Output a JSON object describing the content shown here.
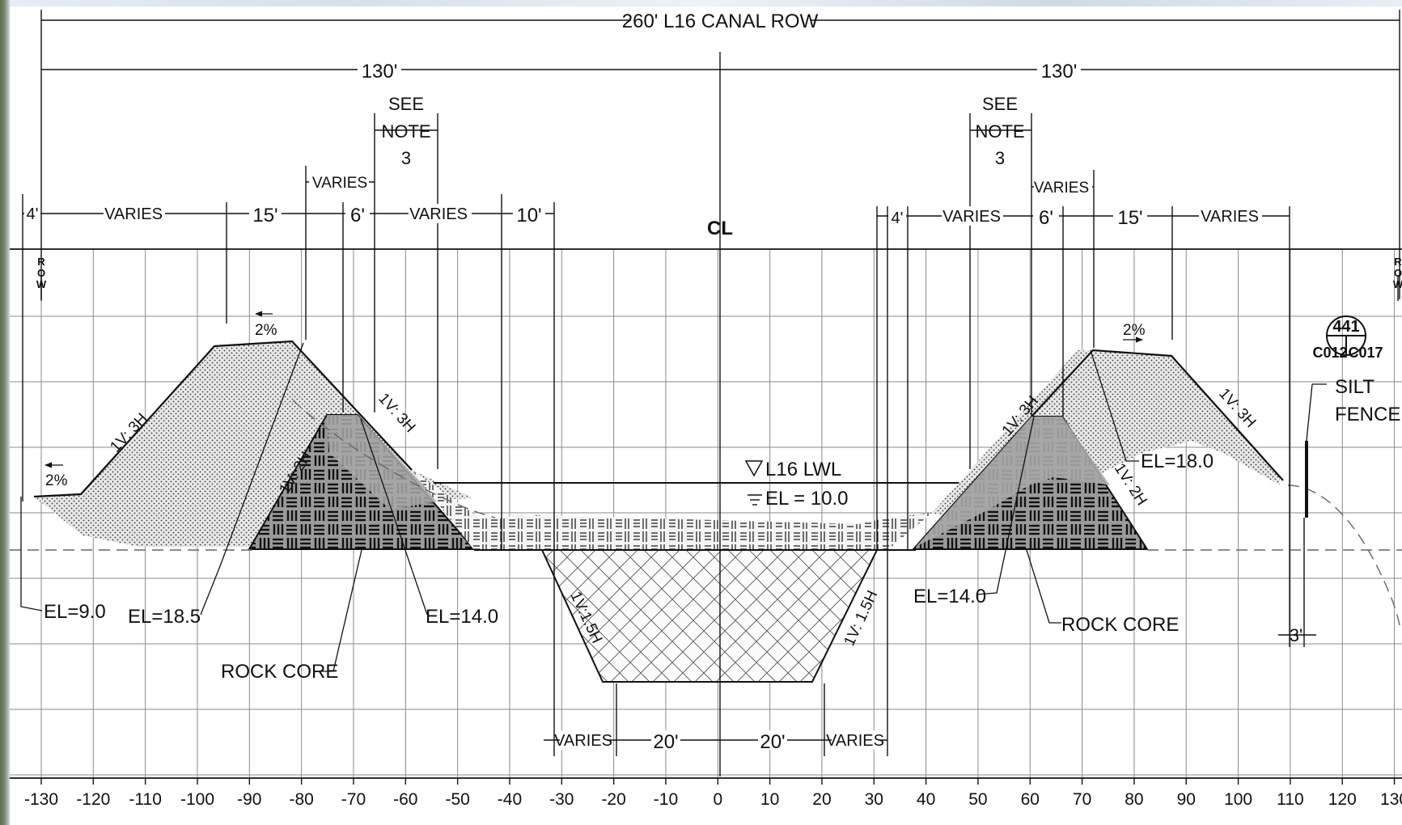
{
  "dimensions": {
    "row_total": "260' L16 CANAL ROW",
    "half_left": "130'",
    "half_right": "130'",
    "see_note_left": [
      "SEE",
      "NOTE",
      "3"
    ],
    "see_note_right": [
      "SEE",
      "NOTE",
      "3"
    ],
    "varies": "VARIES",
    "top_left": [
      "4'",
      "VARIES",
      "15'",
      "6'",
      "VARIES",
      "10'"
    ],
    "top_right": [
      "4'",
      "VARIES",
      "6'",
      "15'",
      "VARIES"
    ],
    "bottom": [
      "VARIES",
      "20'",
      "20'",
      "VARIES"
    ],
    "offset_3": "3'"
  },
  "markers": {
    "centerline": "CL",
    "row_left": [
      "R",
      "O",
      "W"
    ],
    "row_right": [
      "R",
      "O",
      "W"
    ]
  },
  "slopes": {
    "left_outer": "1V: 3H",
    "left_inner": "1V: 3H",
    "left_core": "1V: 2H",
    "right_inner": "1V: 3H",
    "right_outer": "1V: 3H",
    "right_core": "1V: 2H",
    "channel_left": "1V:1.5H",
    "channel_right": "1V: 1.5H",
    "grade_left_top": "2%",
    "grade_left_toe": "2%",
    "grade_right_top": "2%"
  },
  "water": {
    "label": "L16 LWL",
    "elevation": "EL = 10.0"
  },
  "callouts": {
    "el_9": "EL=9.0",
    "el_18_5": "EL=18.5",
    "el_14_left": "EL=14.0",
    "rock_core_left": "ROCK CORE",
    "el_14_right": "EL=14.0",
    "rock_core_right": "ROCK CORE",
    "el_18_right": "EL=18.0",
    "silt_fence": [
      "SILT",
      "FENCE"
    ],
    "detail_number": "441",
    "detail_sheet_left": "C012",
    "detail_sheet_right": "C017"
  },
  "axis": {
    "ticks": [
      "-130",
      "-120",
      "-110",
      "-100",
      "-90",
      "-80",
      "-70",
      "-60",
      "-50",
      "-40",
      "-30",
      "-20",
      "-10",
      "0",
      "10",
      "20",
      "30",
      "40",
      "50",
      "60",
      "70",
      "80",
      "90",
      "100",
      "110",
      "120",
      "130"
    ]
  },
  "colors": {
    "line": "#111111",
    "grid": "#8a8a8a",
    "fill_soil": "#d9d9d9",
    "fill_core": "#a9a9a9"
  }
}
